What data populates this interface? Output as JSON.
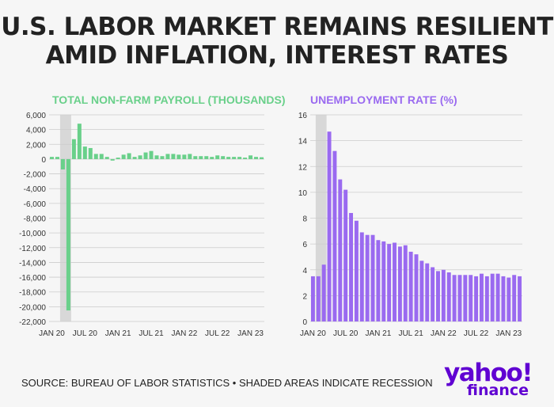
{
  "header": {
    "title_line1": "U.S. LABOR MARKET REMAINS RESILIENT",
    "title_line2": "AMID INFLATION, INTEREST RATES"
  },
  "footer": {
    "source": "SOURCE: BUREAU OF LABOR STATISTICS • SHADED AREAS INDICATE RECESSION"
  },
  "logo": {
    "line1": "yahoo!",
    "line2": "finance"
  },
  "colors": {
    "payroll": "#69d08a",
    "unemployment": "#9a6af0",
    "recession": "#d8d8d8",
    "grid": "#cccccc",
    "axis_text": "#333333"
  },
  "chart_data": [
    {
      "type": "bar",
      "title": "TOTAL NON-FARM PAYROLL (THOUSANDS)",
      "ylim": [
        -22000,
        6000
      ],
      "yticks": [
        6000,
        4000,
        2000,
        0,
        -2000,
        -4000,
        -6000,
        -8000,
        -10000,
        -12000,
        -14000,
        -16000,
        -18000,
        -20000,
        -22000
      ],
      "ytick_labels": [
        "6,000",
        "4,000",
        "2,000",
        "0",
        "-2,000",
        "-4,000",
        "-6,000",
        "-8,000",
        "-10,000",
        "-12,000",
        "-14,000",
        "-16,000",
        "-18,000",
        "-20,000",
        "-22,000"
      ],
      "x_tick_labels": [
        {
          "index": 0,
          "label": "JAN 20"
        },
        {
          "index": 6,
          "label": "JUL 20"
        },
        {
          "index": 12,
          "label": "JAN 21"
        },
        {
          "index": 18,
          "label": "JUL 21"
        },
        {
          "index": 24,
          "label": "JAN 22"
        },
        {
          "index": 30,
          "label": "JUL 22"
        },
        {
          "index": 36,
          "label": "JAN 23"
        }
      ],
      "recession": [
        2,
        3
      ],
      "values": [
        300,
        300,
        -1400,
        -20500,
        2700,
        4800,
        1700,
        1500,
        700,
        700,
        300,
        -200,
        200,
        600,
        800,
        300,
        500,
        900,
        1100,
        500,
        400,
        700,
        700,
        600,
        600,
        700,
        400,
        400,
        400,
        300,
        500,
        400,
        300,
        300,
        300,
        200,
        500,
        300,
        250
      ]
    },
    {
      "type": "bar",
      "title": "UNEMPLOYMENT RATE (%)",
      "ylim": [
        0,
        16
      ],
      "yticks": [
        16,
        14,
        12,
        10,
        8,
        6,
        4,
        2,
        0
      ],
      "ytick_labels": [
        "16",
        "14",
        "12",
        "10",
        "8",
        "6",
        "4",
        "2",
        "0"
      ],
      "x_tick_labels": [
        {
          "index": 0,
          "label": "JAN 20"
        },
        {
          "index": 6,
          "label": "JUL 20"
        },
        {
          "index": 12,
          "label": "JAN 21"
        },
        {
          "index": 18,
          "label": "JUL 21"
        },
        {
          "index": 24,
          "label": "JAN 22"
        },
        {
          "index": 30,
          "label": "JUL 22"
        },
        {
          "index": 36,
          "label": "JAN 23"
        }
      ],
      "recession": [
        1,
        2
      ],
      "values": [
        3.5,
        3.5,
        4.4,
        14.7,
        13.2,
        11.0,
        10.2,
        8.4,
        7.8,
        6.9,
        6.7,
        6.7,
        6.3,
        6.2,
        6.0,
        6.1,
        5.8,
        5.9,
        5.4,
        5.2,
        4.7,
        4.5,
        4.2,
        3.9,
        4.0,
        3.8,
        3.6,
        3.6,
        3.6,
        3.6,
        3.5,
        3.7,
        3.5,
        3.7,
        3.7,
        3.5,
        3.4,
        3.6,
        3.5
      ]
    }
  ]
}
